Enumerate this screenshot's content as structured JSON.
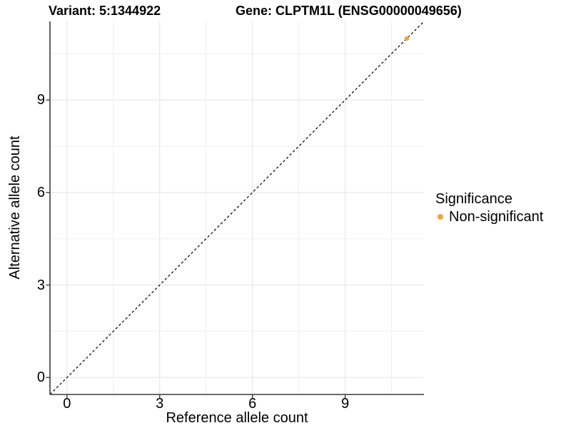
{
  "chart_data": {
    "type": "scatter",
    "titles": {
      "left": "Variant: 5:1344922",
      "right": "Gene: CLPTM1L (ENSG00000049656)"
    },
    "xlabel": "Reference allele count",
    "ylabel": "Alternative allele count",
    "xlim": [
      -0.55,
      11.55
    ],
    "ylim": [
      -0.55,
      11.55
    ],
    "xticks": [
      0,
      3,
      6,
      9
    ],
    "yticks": [
      0,
      3,
      6,
      9
    ],
    "minor_ticks_x": [
      1.5,
      4.5,
      7.5,
      10.5
    ],
    "minor_ticks_y": [
      1.5,
      4.5,
      7.5,
      10.5
    ],
    "grid": true,
    "series": [
      {
        "name": "Non-significant",
        "color": "#F8A13A",
        "points": [
          {
            "x": 11,
            "y": 11
          }
        ]
      }
    ],
    "reference_line": {
      "style": "dashed",
      "color": "#000000",
      "from": [
        -0.55,
        -0.55
      ],
      "to": [
        11.55,
        11.55
      ]
    },
    "legend": {
      "title": "Significance",
      "position": "right",
      "entries": [
        {
          "label": "Non-significant",
          "color": "#F8A13A"
        }
      ]
    },
    "colors": {
      "background": "#FFFFFF",
      "grid_major": "#E4E4E4",
      "grid_minor": "#EFEFEF",
      "axis_line": "#3C3C3C",
      "text": "#000000"
    }
  }
}
